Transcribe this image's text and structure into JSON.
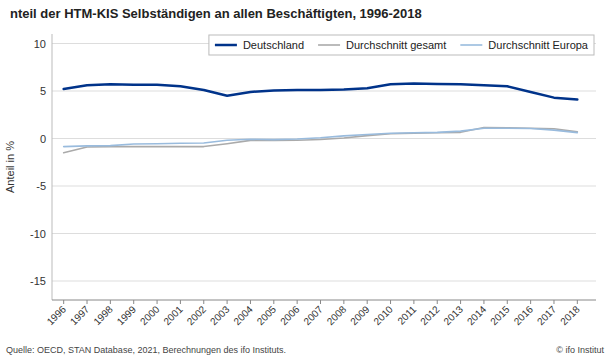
{
  "chart_data": {
    "type": "line",
    "title": "nteil der HTM-KIS Selbständigen an allen Beschäftigten, 1996-2018",
    "ylabel": "Anteil in %",
    "annotations": [
      "Quelle: OECD, STAN Database, 2021, Berechnungen des ifo Instituts.",
      "© ifo Institut"
    ],
    "x": [
      1996,
      1997,
      1998,
      1999,
      2000,
      2001,
      2002,
      2003,
      2004,
      2005,
      2006,
      2007,
      2008,
      2009,
      2010,
      2011,
      2012,
      2013,
      2014,
      2015,
      2016,
      2017,
      2018
    ],
    "series": [
      {
        "name": "Deutschland",
        "color": "#00338a",
        "values": [
          5.2,
          5.6,
          5.7,
          5.65,
          5.65,
          5.5,
          5.1,
          4.5,
          4.9,
          5.05,
          5.1,
          5.1,
          5.15,
          5.3,
          5.7,
          5.8,
          5.75,
          5.7,
          5.6,
          5.5,
          4.9,
          4.3,
          4.1
        ]
      },
      {
        "name": "Durchschnitt gesamt",
        "color": "#aaaaaa",
        "values": [
          -1.5,
          -0.9,
          -0.85,
          -0.85,
          -0.85,
          -0.85,
          -0.85,
          -0.55,
          -0.2,
          -0.2,
          -0.18,
          -0.1,
          0.05,
          0.3,
          0.5,
          0.55,
          0.6,
          0.65,
          1.15,
          1.12,
          1.08,
          1.02,
          0.7
        ]
      },
      {
        "name": "Durchschnitt Europa",
        "color": "#99bbdd",
        "values": [
          -0.85,
          -0.78,
          -0.75,
          -0.58,
          -0.55,
          -0.5,
          -0.48,
          -0.18,
          -0.08,
          -0.12,
          -0.05,
          0.08,
          0.28,
          0.42,
          0.55,
          0.6,
          0.65,
          0.78,
          1.08,
          1.08,
          1.05,
          0.88,
          0.62
        ]
      }
    ],
    "xlim": [
      1995.5,
      2018.8
    ],
    "xticks": [
      1996,
      1997,
      1998,
      1999,
      2000,
      2001,
      2002,
      2003,
      2004,
      2005,
      2006,
      2007,
      2008,
      2009,
      2010,
      2011,
      2012,
      2013,
      2014,
      2015,
      2016,
      2017,
      2018
    ],
    "ylim": [
      -17,
      11
    ],
    "yticks": [
      -15,
      -10,
      -5,
      0,
      5,
      10
    ],
    "grid": true,
    "legend": "upper right"
  }
}
